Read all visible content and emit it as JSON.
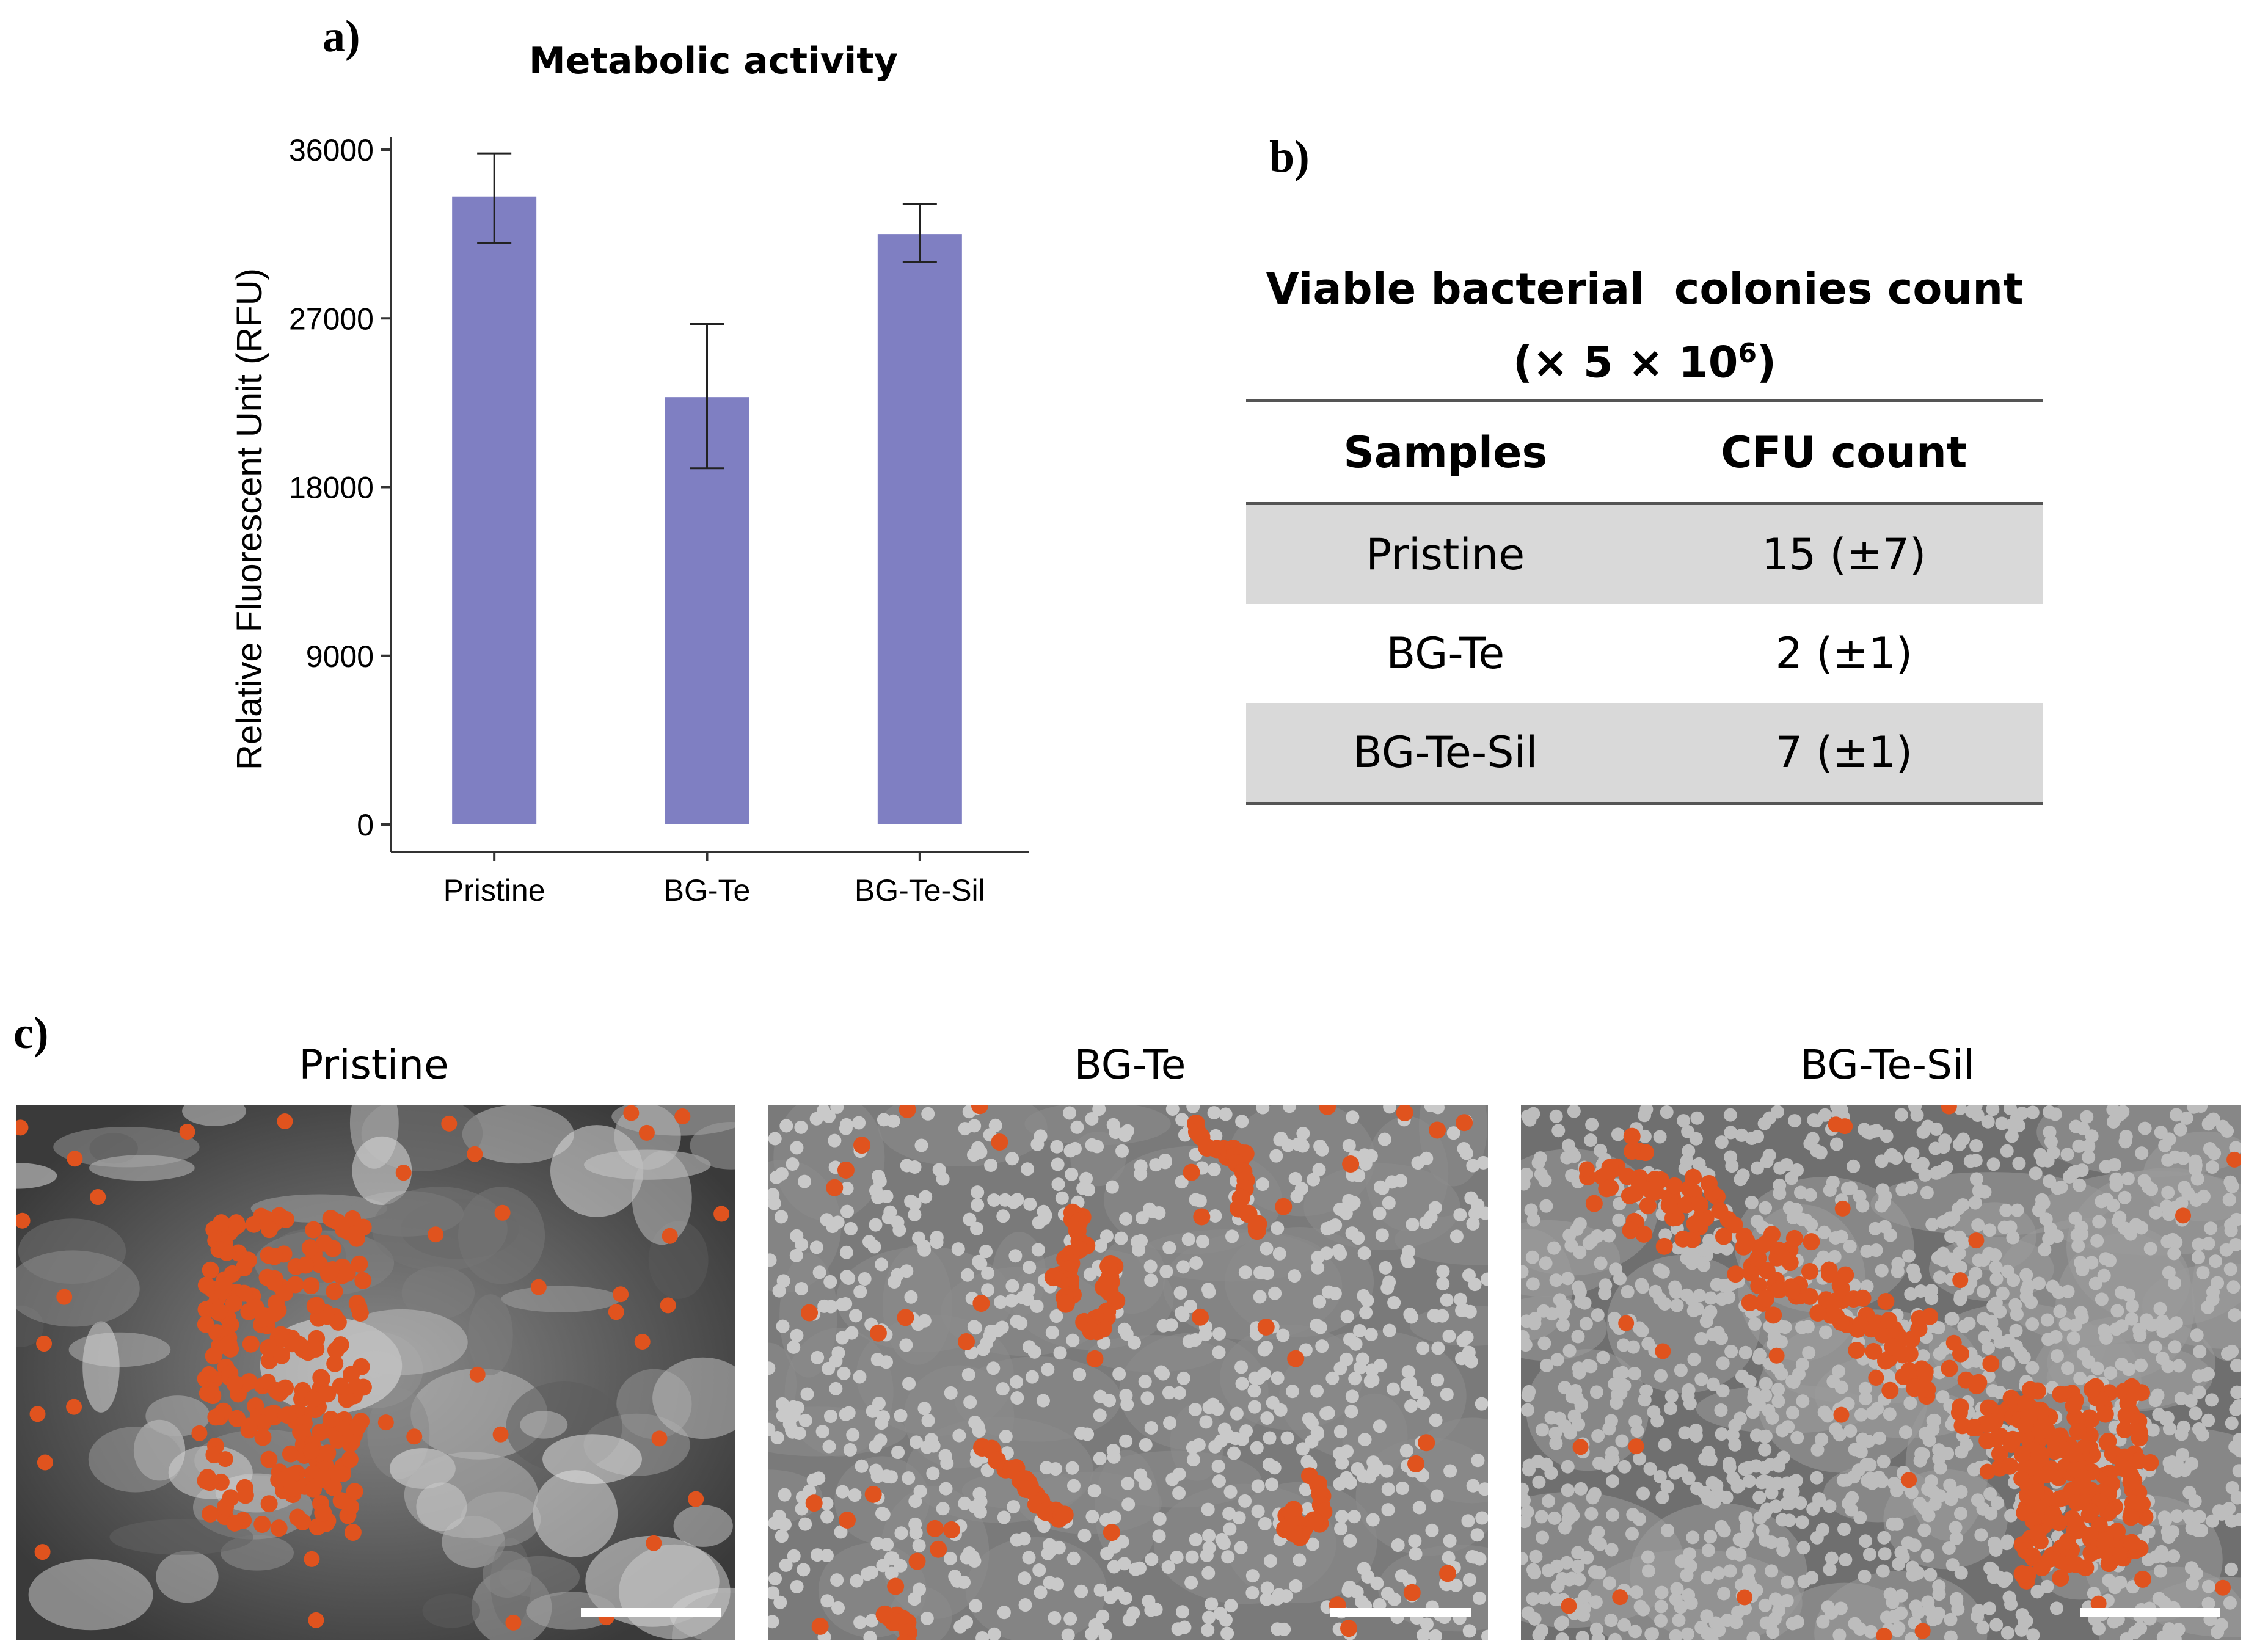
{
  "panel_labels": {
    "a": "a)",
    "b": "b)",
    "c": "c)"
  },
  "colors": {
    "bar": "#7f7fc2",
    "bacteria": "#e0531e",
    "table_shade": "#d9d9d9"
  },
  "chart_data": {
    "type": "bar",
    "title": "Metabolic activity",
    "ylabel": "Relative Fluorescent Unit (RFU)",
    "xlabel": "",
    "categories": [
      "Pristine",
      "BG-Te",
      "BG-Te-Sil"
    ],
    "values": [
      33500,
      22800,
      31500
    ],
    "error_low": [
      31000,
      19000,
      30000
    ],
    "error_high": [
      35800,
      26700,
      33100
    ],
    "ylim": [
      0,
      36000
    ],
    "yticks": [
      0,
      9000,
      18000,
      27000,
      36000
    ],
    "grid": false,
    "legend": "none"
  },
  "table": {
    "title_line1": "Viable bacterial  colonies count",
    "title_line2_prefix": "(× 5 × 10",
    "title_line2_exp": "6",
    "title_line2_suffix": ")",
    "headers": [
      "Samples",
      "CFU count"
    ],
    "rows": [
      [
        "Pristine",
        "15 (±7)"
      ],
      [
        "BG-Te",
        "2 (±1)"
      ],
      [
        "BG-Te-Sil",
        "7 (±1)"
      ]
    ]
  },
  "sem": {
    "titles": [
      "Pristine",
      "BG-Te",
      "BG-Te-Sil"
    ]
  }
}
